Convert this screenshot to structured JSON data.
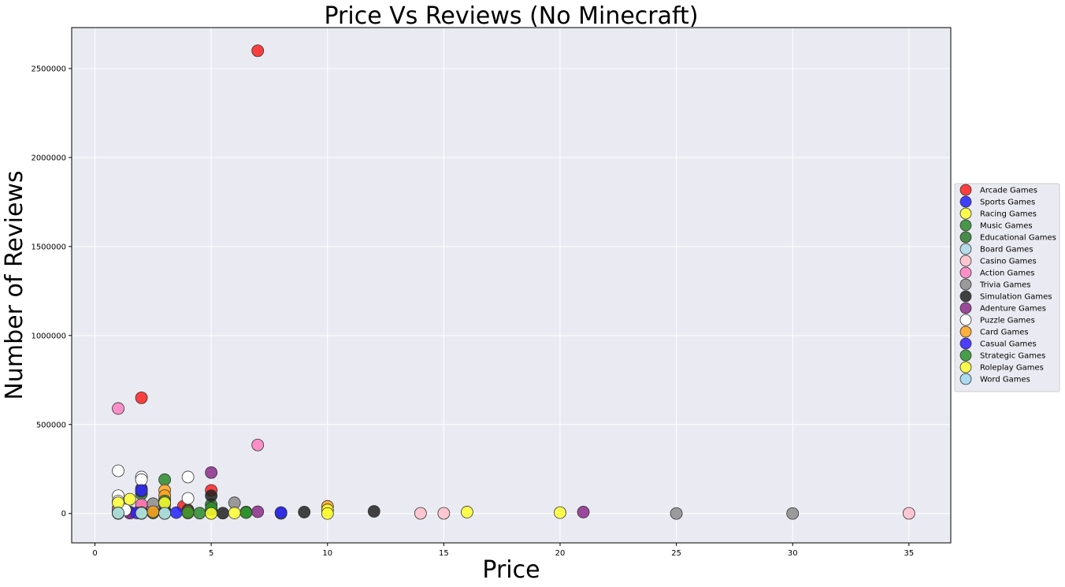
{
  "chart_data": {
    "type": "scatter",
    "title": "Price Vs Reviews (No Minecraft)",
    "xlabel": "Price",
    "ylabel": "Number of Reviews",
    "xlim": [
      -1,
      36.8
    ],
    "ylim": [
      -165000,
      2730000
    ],
    "xticks": [
      0,
      5,
      10,
      15,
      20,
      25,
      30,
      35
    ],
    "yticks": [
      0,
      500000,
      1000000,
      1500000,
      2000000,
      2500000
    ],
    "grid": true,
    "legend_position": "center-right",
    "background": "#eaeaf2",
    "series": [
      {
        "name": "Arcade Games",
        "color": "#ff2020",
        "points": [
          [
            7,
            2600000
          ],
          [
            2,
            650000
          ],
          [
            5,
            130000
          ],
          [
            3.8,
            40000
          ],
          [
            4,
            20000
          ],
          [
            2,
            40000
          ],
          [
            3,
            20000
          ],
          [
            1,
            10000
          ],
          [
            2.5,
            5000
          ],
          [
            5,
            10000
          ]
        ]
      },
      {
        "name": "Sports Games",
        "color": "#2020ff",
        "points": [
          [
            2,
            140000
          ],
          [
            3.5,
            5000
          ],
          [
            8,
            5000
          ],
          [
            1.5,
            8000
          ],
          [
            2,
            10000
          ],
          [
            5,
            3000
          ]
        ]
      },
      {
        "name": "Racing Games",
        "color": "#ffff30",
        "points": [
          [
            1.5,
            80000
          ],
          [
            1,
            30000
          ],
          [
            3,
            20000
          ],
          [
            2,
            10000
          ],
          [
            5,
            5000
          ]
        ]
      },
      {
        "name": "Music Games",
        "color": "#2a8a2a",
        "points": [
          [
            3,
            190000
          ],
          [
            2,
            110000
          ],
          [
            3,
            50000
          ],
          [
            5,
            20000
          ],
          [
            4.5,
            2000
          ],
          [
            8,
            1000
          ]
        ]
      },
      {
        "name": "Educational Games",
        "color": "#2a7a2a",
        "points": [
          [
            2,
            125000
          ],
          [
            3,
            80000
          ],
          [
            5,
            50000
          ],
          [
            6.5,
            8000
          ],
          [
            4,
            15000
          ],
          [
            2.5,
            3000
          ]
        ]
      },
      {
        "name": "Board Games",
        "color": "#add8e6",
        "points": [
          [
            1,
            5000
          ],
          [
            2,
            3000
          ],
          [
            3,
            2000
          ]
        ]
      },
      {
        "name": "Casino Games",
        "color": "#ffc0cb",
        "points": [
          [
            14,
            1000
          ],
          [
            15,
            1000
          ],
          [
            35,
            1000
          ],
          [
            3,
            5000
          ],
          [
            2,
            3000
          ]
        ]
      },
      {
        "name": "Action Games",
        "color": "#ff7fbf",
        "points": [
          [
            1,
            590000
          ],
          [
            7,
            385000
          ],
          [
            2,
            50000
          ],
          [
            1,
            20000
          ],
          [
            3,
            10000
          ]
        ]
      },
      {
        "name": "Trivia Games",
        "color": "#8c8c8c",
        "points": [
          [
            6,
            60000
          ],
          [
            25,
            0
          ],
          [
            30,
            0
          ],
          [
            2.5,
            55000
          ],
          [
            3,
            10000
          ]
        ]
      },
      {
        "name": "Simulation Games",
        "color": "#222222",
        "points": [
          [
            5,
            100000
          ],
          [
            12,
            12000
          ],
          [
            9,
            8000
          ],
          [
            5.5,
            2000
          ],
          [
            2,
            5000
          ],
          [
            1,
            3000
          ]
        ]
      },
      {
        "name": "Adenture Games",
        "color": "#8b2c8b",
        "points": [
          [
            5,
            230000
          ],
          [
            21,
            8000
          ],
          [
            7,
            10000
          ],
          [
            4,
            3000
          ],
          [
            1.5,
            2000
          ]
        ]
      },
      {
        "name": "Puzzle Games",
        "color": "#ffffff",
        "points": [
          [
            1,
            240000
          ],
          [
            2,
            205000
          ],
          [
            4,
            205000
          ],
          [
            2,
            190000
          ],
          [
            1,
            100000
          ],
          [
            4,
            85000
          ],
          [
            1,
            70000
          ],
          [
            1.3,
            20000
          ],
          [
            3,
            5000
          ]
        ]
      },
      {
        "name": "Card Games",
        "color": "#ffa520",
        "points": [
          [
            3,
            130000
          ],
          [
            3,
            100000
          ],
          [
            10,
            40000
          ],
          [
            2.5,
            10000
          ],
          [
            2,
            5000
          ],
          [
            4,
            10000
          ]
        ]
      },
      {
        "name": "Casual Games",
        "color": "#3020ff",
        "points": [
          [
            2,
            130000
          ],
          [
            8,
            5000
          ],
          [
            1.8,
            3000
          ],
          [
            3,
            5000
          ]
        ]
      },
      {
        "name": "Strategic Games",
        "color": "#2a902a",
        "points": [
          [
            3,
            70000
          ],
          [
            5,
            30000
          ],
          [
            6.5,
            5000
          ],
          [
            4,
            5000
          ]
        ]
      },
      {
        "name": "Roleplay Games",
        "color": "#ffff30",
        "points": [
          [
            1,
            60000
          ],
          [
            3,
            60000
          ],
          [
            10,
            20000
          ],
          [
            16,
            8000
          ],
          [
            20,
            5000
          ],
          [
            6,
            3000
          ],
          [
            1,
            0
          ],
          [
            2,
            0
          ],
          [
            3,
            0
          ],
          [
            5,
            0
          ],
          [
            10,
            0
          ]
        ]
      },
      {
        "name": "Word Games",
        "color": "#9fd8f0",
        "points": [
          [
            1,
            3000
          ],
          [
            2,
            2000
          ],
          [
            3,
            1000
          ]
        ]
      }
    ]
  }
}
